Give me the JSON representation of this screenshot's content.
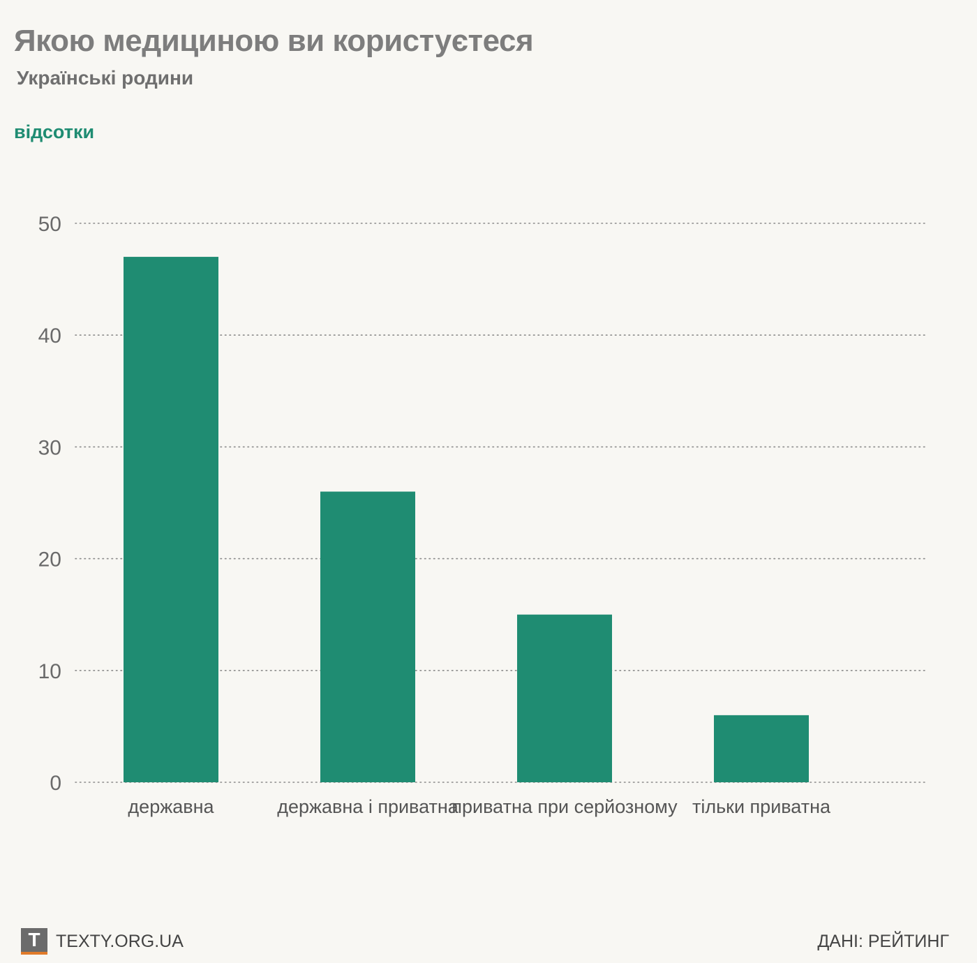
{
  "header": {
    "title": "Якою медициною ви користуєтеся",
    "subtitle": "Українські родини",
    "unit_label": "відсотки"
  },
  "footer": {
    "logo_letter": "T",
    "site": "TEXTY.ORG.UA",
    "source": "ДАНІ: РЕЙТИНГ"
  },
  "colors": {
    "bar": "#1f8c72",
    "title": "#7d7d7d",
    "accent": "#1f8c72",
    "logo_bg": "#6b6b6b",
    "logo_stripe": "#e07b2a"
  },
  "chart_data": {
    "type": "bar",
    "categories": [
      "державна",
      "державна і приватна",
      "приватна при серйозному",
      "тільки приватна"
    ],
    "values": [
      47,
      26,
      15,
      6
    ],
    "title": "Якою медициною ви користуєтеся",
    "subtitle": "Українські родини",
    "xlabel": "",
    "ylabel": "відсотки",
    "ylim": [
      0,
      50
    ],
    "yticks": [
      0,
      10,
      20,
      30,
      40,
      50
    ],
    "grid": true,
    "legend": "none"
  }
}
